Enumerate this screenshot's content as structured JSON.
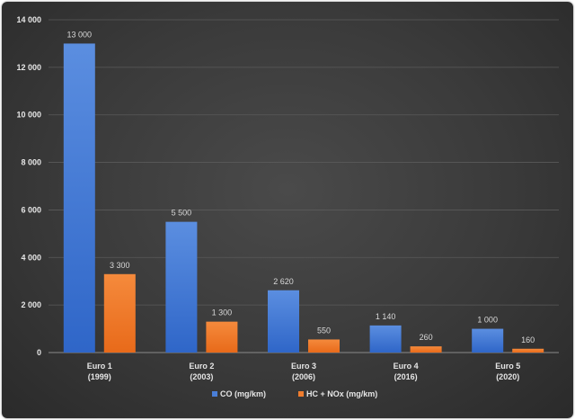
{
  "chart_data": {
    "type": "bar",
    "title": "",
    "xlabel": "",
    "ylabel": "",
    "ylim": [
      0,
      14000
    ],
    "yticks": [
      0,
      2000,
      4000,
      6000,
      8000,
      10000,
      12000,
      14000
    ],
    "ytick_labels": [
      "0",
      "2 000",
      "4 000",
      "6 000",
      "8 000",
      "10 000",
      "12 000",
      "14 000"
    ],
    "categories": [
      [
        "Euro 1",
        "(1999)"
      ],
      [
        "Euro 2",
        "(2003)"
      ],
      [
        "Euro 3",
        "(2006)"
      ],
      [
        "Euro 4",
        "(2016)"
      ],
      [
        "Euro 5",
        "(2020)"
      ]
    ],
    "series": [
      {
        "name": "CO (mg/km)",
        "color": "#4a7fd8",
        "values": [
          13000,
          5500,
          2620,
          1140,
          1000
        ],
        "labels": [
          "13 000",
          "5 500",
          "2 620",
          "1 140",
          "1 000"
        ]
      },
      {
        "name": "HC + NOx (mg/km)",
        "color": "#f07d2e",
        "values": [
          3300,
          1300,
          550,
          260,
          160
        ],
        "labels": [
          "3 300",
          "1 300",
          "550",
          "260",
          "160"
        ]
      }
    ],
    "grid": true,
    "legend_position": "bottom"
  }
}
